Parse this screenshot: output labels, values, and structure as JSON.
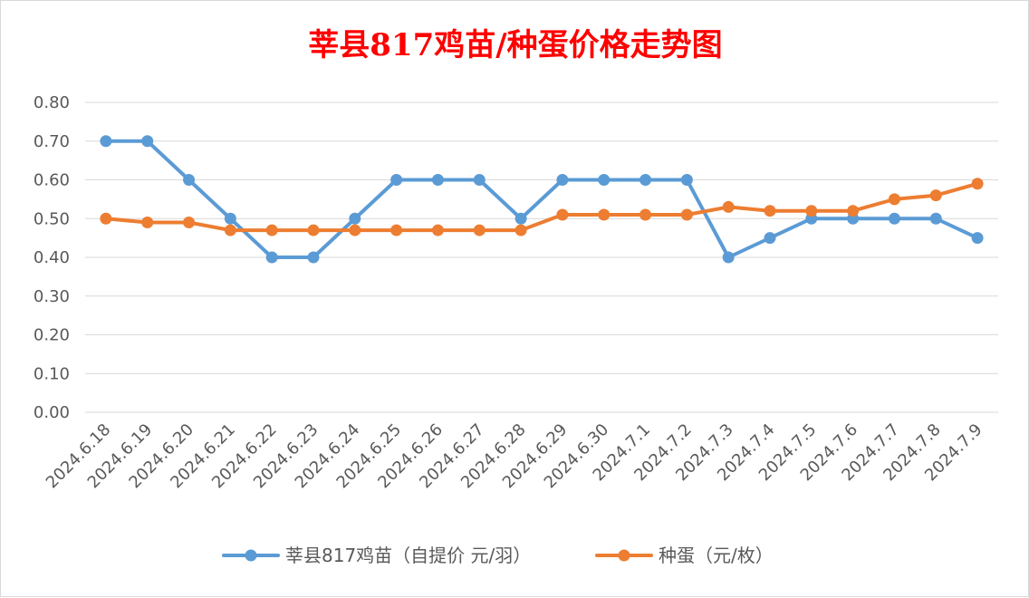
{
  "chart_data": {
    "type": "line",
    "title": "莘县817鸡苗/种蛋价格走势图",
    "categories": [
      "2024.6.18",
      "2024.6.19",
      "2024.6.20",
      "2024.6.21",
      "2024.6.22",
      "2024.6.23",
      "2024.6.24",
      "2024.6.25",
      "2024.6.26",
      "2024.6.27",
      "2024.6.28",
      "2024.6.29",
      "2024.6.30",
      "2024.7.1",
      "2024.7.2",
      "2024.7.3",
      "2024.7.4",
      "2024.7.5",
      "2024.7.6",
      "2024.7.7",
      "2024.7.8",
      "2024.7.9"
    ],
    "ylim": [
      0,
      0.8
    ],
    "yticks": [
      "0.00",
      "0.10",
      "0.20",
      "0.30",
      "0.40",
      "0.50",
      "0.60",
      "0.70",
      "0.80"
    ],
    "grid": true,
    "legend_position": "bottom",
    "series": [
      {
        "name": "莘县817鸡苗（自提价 元/羽）",
        "color": "#5b9bd5",
        "values": [
          0.7,
          0.7,
          0.6,
          0.5,
          0.4,
          0.4,
          0.5,
          0.6,
          0.6,
          0.6,
          0.5,
          0.6,
          0.6,
          0.6,
          0.6,
          0.4,
          0.45,
          0.5,
          0.5,
          0.5,
          0.5,
          0.45
        ]
      },
      {
        "name": "种蛋（元/枚）",
        "color": "#ed7d31",
        "values": [
          0.5,
          0.49,
          0.49,
          0.47,
          0.47,
          0.47,
          0.47,
          0.47,
          0.47,
          0.47,
          0.47,
          0.51,
          0.51,
          0.51,
          0.51,
          0.53,
          0.52,
          0.52,
          0.52,
          0.55,
          0.56,
          0.59
        ]
      }
    ]
  }
}
